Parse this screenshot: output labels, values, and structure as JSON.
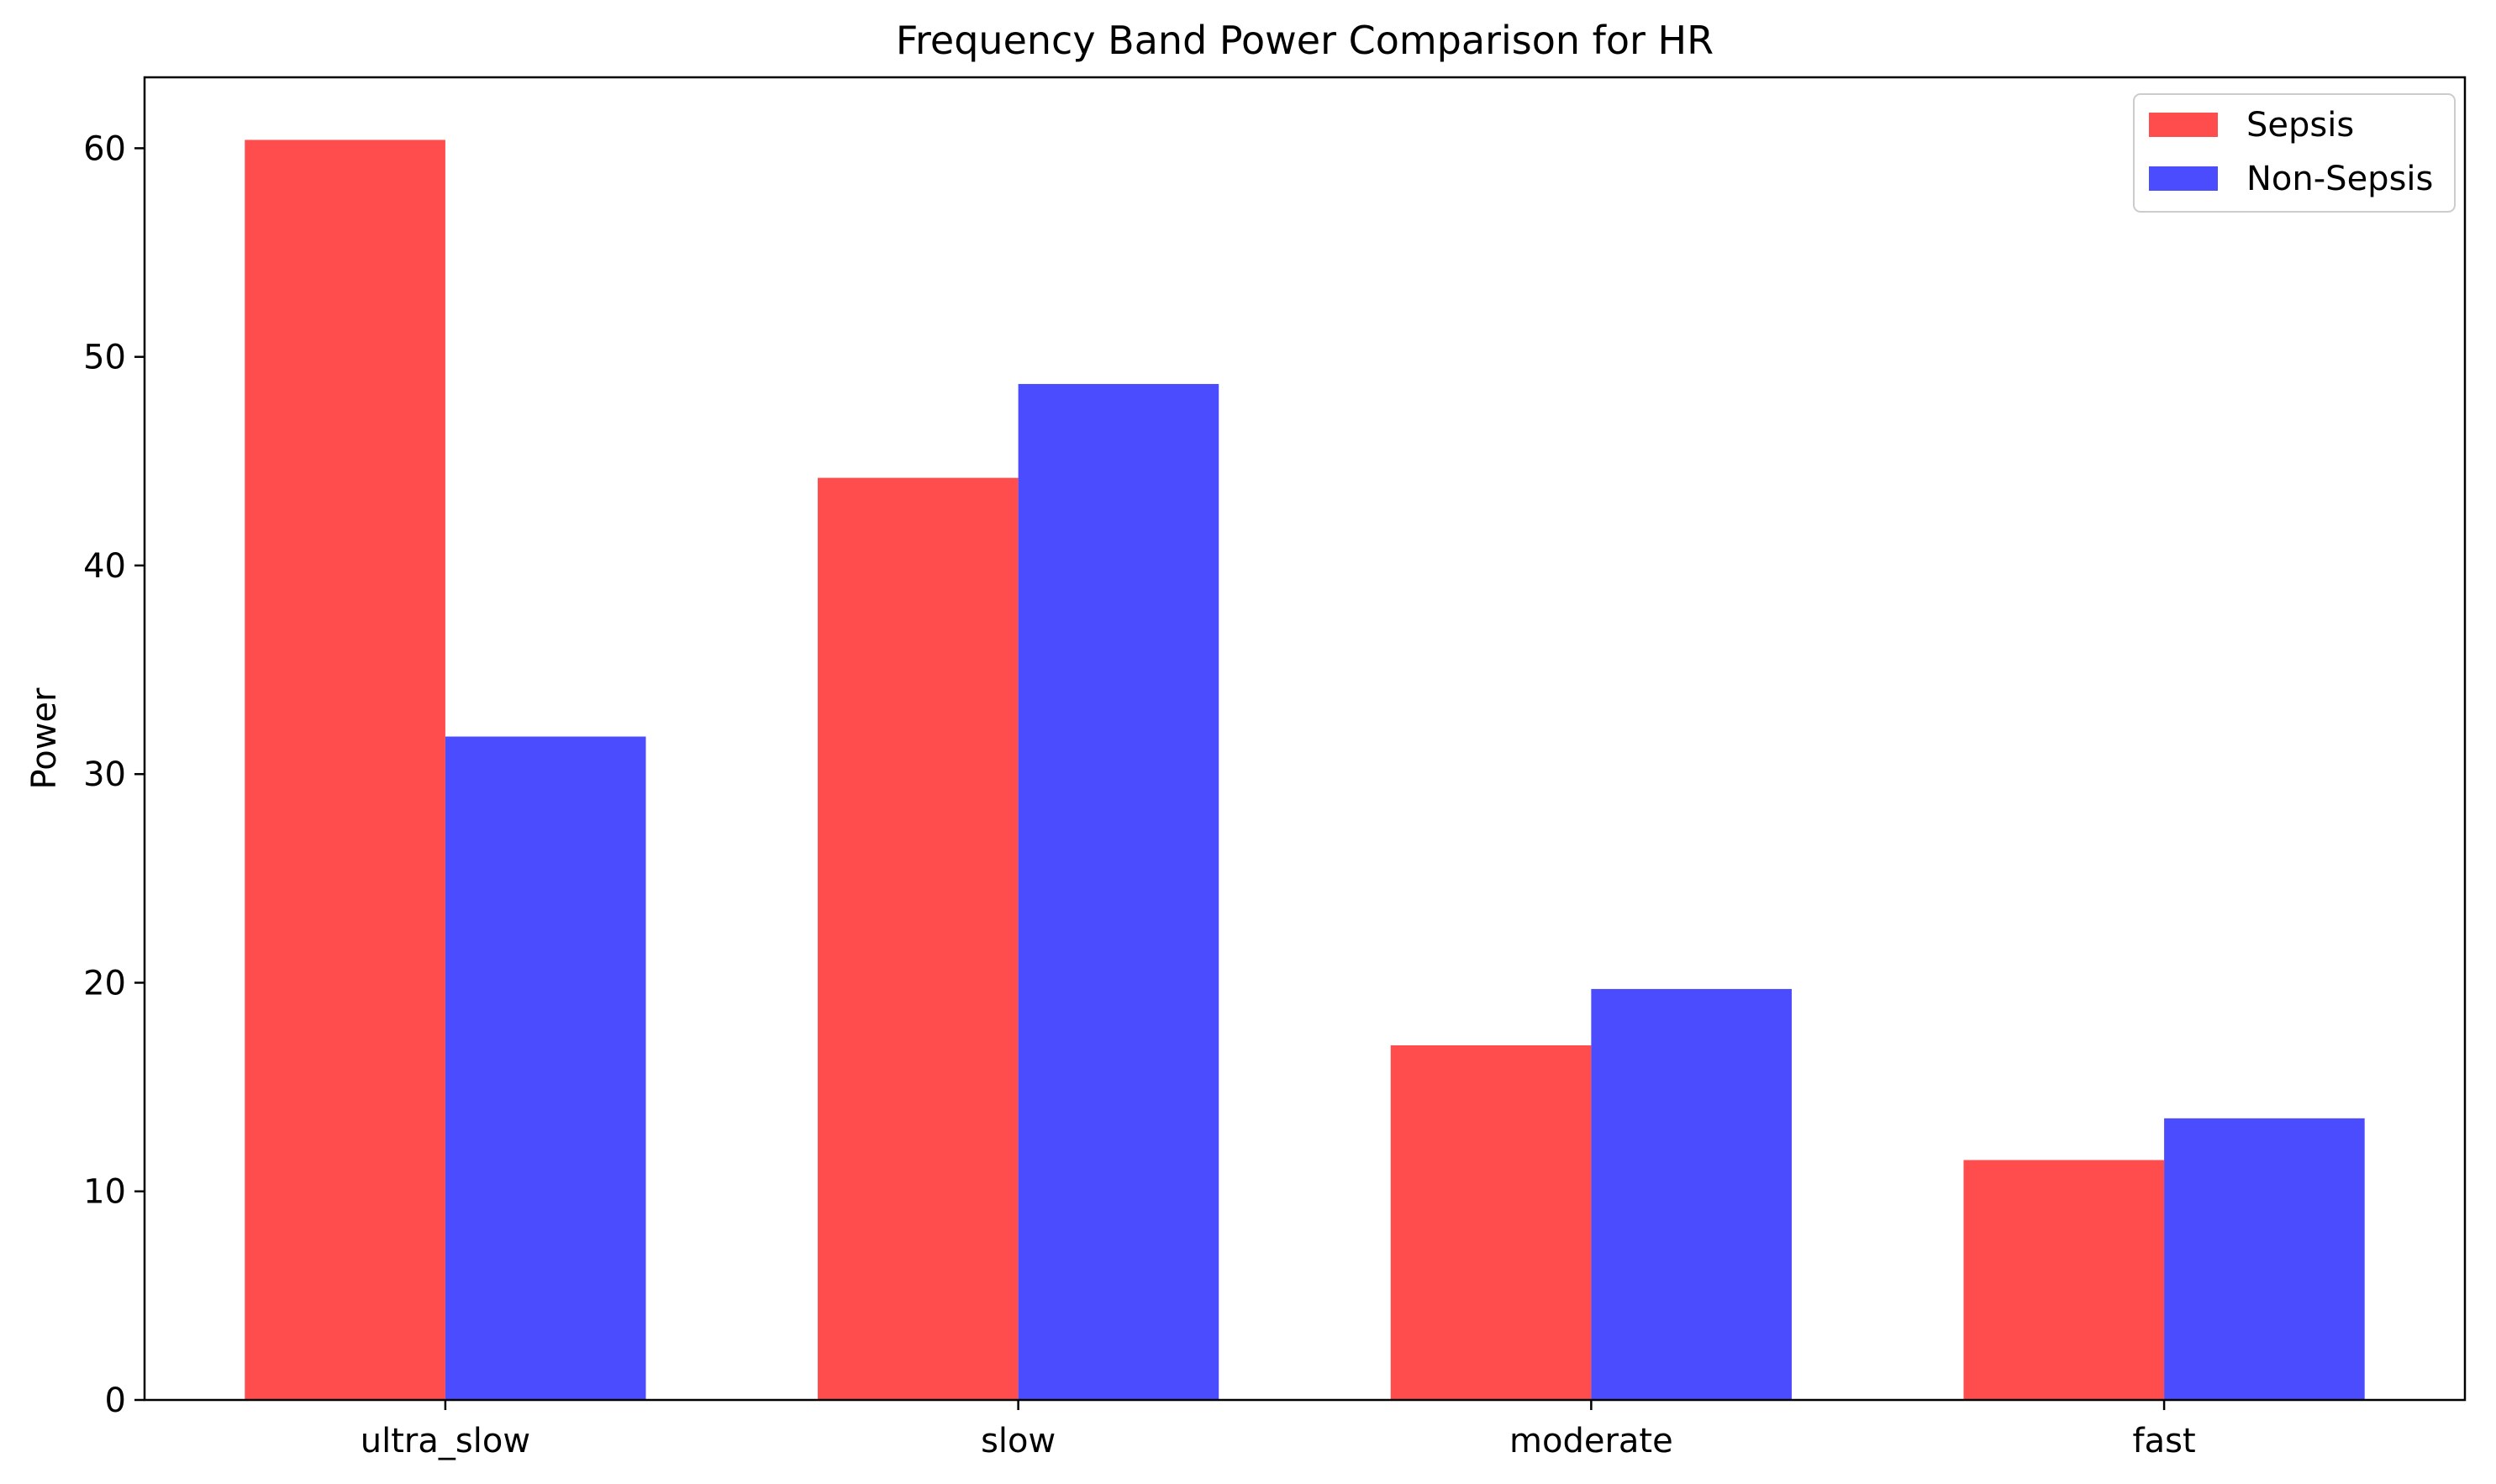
{
  "chart_data": {
    "type": "bar",
    "title": "Frequency Band Power Comparison for HR",
    "xlabel": "",
    "ylabel": "Power",
    "categories": [
      "ultra_slow",
      "slow",
      "moderate",
      "fast"
    ],
    "series": [
      {
        "name": "Sepsis",
        "values": [
          60.4,
          44.2,
          17.0,
          11.5
        ],
        "color": "#ff4c4c"
      },
      {
        "name": "Non-Sepsis",
        "values": [
          31.8,
          48.7,
          19.7,
          13.5
        ],
        "color": "#4c4cff"
      }
    ],
    "ylim": [
      0,
      63.4
    ],
    "yticks": [
      0,
      10,
      20,
      30,
      40,
      50,
      60
    ],
    "grid": false,
    "legend_position": "top-right"
  }
}
